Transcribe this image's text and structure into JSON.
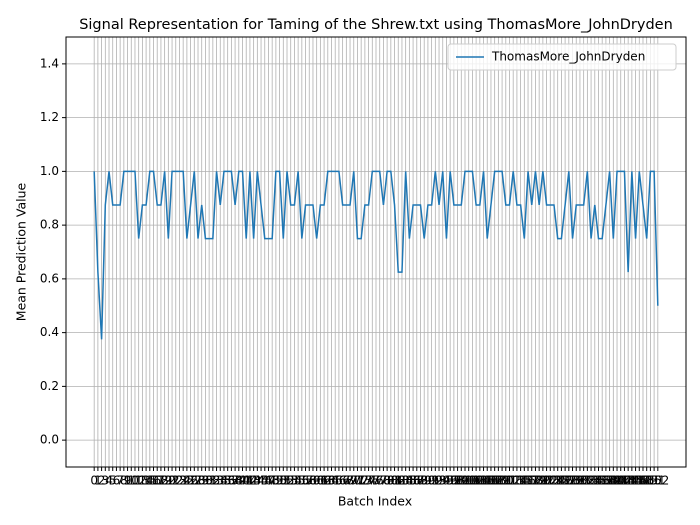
{
  "chart_data": {
    "type": "line",
    "title": "Signal Representation for Taming of the Shrew.txt using ThomasMore_JohnDryden",
    "x_label": "Batch Index",
    "y_label": "Mean Prediction Value",
    "x": [
      0,
      1,
      2,
      3,
      4,
      5,
      6,
      7,
      8,
      9,
      10,
      11,
      12,
      13,
      14,
      15,
      16,
      17,
      18,
      19,
      20,
      21,
      22,
      23,
      24,
      25,
      26,
      27,
      28,
      29,
      30,
      31,
      32,
      33,
      34,
      35,
      36,
      37,
      38,
      39,
      40,
      41,
      42,
      43,
      44,
      45,
      46,
      47,
      48,
      49,
      50,
      51,
      52,
      53,
      54,
      55,
      56,
      57,
      58,
      59,
      60,
      61,
      62,
      63,
      64,
      65,
      66,
      67,
      68,
      69,
      70,
      71,
      72,
      73,
      74,
      75,
      76,
      77,
      78,
      79,
      80,
      81,
      82,
      83,
      84,
      85,
      86,
      87,
      88,
      89,
      90,
      91,
      92,
      93,
      94,
      95,
      96,
      97,
      98,
      99,
      100,
      101,
      102,
      103,
      104,
      105,
      106,
      107,
      108,
      109,
      110,
      111,
      112,
      113,
      114,
      115,
      116,
      117,
      118,
      119,
      120,
      121,
      122,
      123,
      124,
      125,
      126,
      127,
      128,
      129,
      130,
      131,
      132,
      133,
      134,
      135,
      136,
      137,
      138,
      139,
      140,
      141,
      142,
      143,
      144,
      145,
      146,
      147,
      148,
      149,
      150,
      151,
      152
    ],
    "series": [
      {
        "name": "ThomasMore_JohnDryden",
        "color": "#1f77b4",
        "values": [
          1,
          0.625,
          0.375,
          0.875,
          1,
          0.875,
          0.875,
          0.875,
          1,
          1,
          1,
          1,
          0.75,
          0.875,
          0.875,
          1,
          1,
          0.875,
          0.875,
          1,
          0.75,
          1,
          1,
          1,
          1,
          0.75,
          0.875,
          1,
          0.75,
          0.875,
          0.75,
          0.75,
          0.75,
          1,
          0.875,
          1,
          1,
          1,
          0.875,
          1,
          1,
          0.75,
          1,
          0.75,
          1,
          0.875,
          0.75,
          0.75,
          0.75,
          1,
          1,
          0.75,
          1,
          0.875,
          0.875,
          1,
          0.75,
          0.875,
          0.875,
          0.875,
          0.75,
          0.875,
          0.875,
          1,
          1,
          1,
          1,
          0.875,
          0.875,
          0.875,
          1,
          0.75,
          0.75,
          0.875,
          0.875,
          1,
          1,
          1,
          0.875,
          1,
          1,
          0.875,
          0.625,
          0.625,
          1,
          0.75,
          0.875,
          0.875,
          0.875,
          0.75,
          0.875,
          0.875,
          1,
          0.875,
          1,
          0.75,
          1,
          0.875,
          0.875,
          0.875,
          1,
          1,
          1,
          0.875,
          0.875,
          1,
          0.75,
          0.875,
          1,
          1,
          1,
          0.875,
          0.875,
          1,
          0.875,
          0.875,
          0.75,
          1,
          0.875,
          1,
          0.875,
          1,
          0.875,
          0.875,
          0.875,
          0.75,
          0.75,
          0.875,
          1,
          0.75,
          0.875,
          0.875,
          0.875,
          1,
          0.75,
          0.875,
          0.75,
          0.75,
          0.875,
          1,
          0.75,
          1,
          1,
          1,
          0.625,
          1,
          0.75,
          1,
          0.875,
          0.75,
          1,
          1,
          0.5
        ]
      }
    ],
    "xlim": [
      -7.6,
      159.6
    ],
    "ylim": [
      -0.1,
      1.5
    ],
    "xticks": [
      0,
      1,
      2,
      3,
      4,
      5,
      6,
      7,
      8,
      9,
      10,
      11,
      12,
      13,
      14,
      15,
      16,
      17,
      18,
      19,
      20,
      21,
      22,
      23,
      24,
      25,
      26,
      27,
      28,
      29,
      30,
      31,
      32,
      33,
      34,
      35,
      36,
      37,
      38,
      39,
      40,
      41,
      42,
      43,
      44,
      45,
      46,
      47,
      48,
      49,
      50,
      51,
      52,
      53,
      54,
      55,
      56,
      57,
      58,
      59,
      60,
      61,
      62,
      63,
      64,
      65,
      66,
      67,
      68,
      69,
      70,
      71,
      72,
      73,
      74,
      75,
      76,
      77,
      78,
      79,
      80,
      81,
      82,
      83,
      84,
      85,
      86,
      87,
      88,
      89,
      90,
      91,
      92,
      93,
      94,
      95,
      96,
      97,
      98,
      99,
      100,
      101,
      102,
      103,
      104,
      105,
      106,
      107,
      108,
      109,
      110,
      111,
      112,
      113,
      114,
      115,
      116,
      117,
      118,
      119,
      120,
      121,
      122,
      123,
      124,
      125,
      126,
      127,
      128,
      129,
      130,
      131,
      132,
      133,
      134,
      135,
      136,
      137,
      138,
      139,
      140,
      141,
      142,
      143,
      144,
      145,
      146,
      147,
      148,
      149,
      150,
      151,
      152
    ],
    "yticks": [
      {
        "value": 0,
        "label": "0.0"
      },
      {
        "value": 0.2,
        "label": "0.2"
      },
      {
        "value": 0.4,
        "label": "0.4"
      },
      {
        "value": 0.6,
        "label": "0.6"
      },
      {
        "value": 0.8,
        "label": "0.8"
      },
      {
        "value": 1,
        "label": "1.0"
      },
      {
        "value": 1.2,
        "label": "1.2"
      },
      {
        "value": 1.4,
        "label": "1.4"
      }
    ],
    "grid": true,
    "legend": "upper right"
  }
}
